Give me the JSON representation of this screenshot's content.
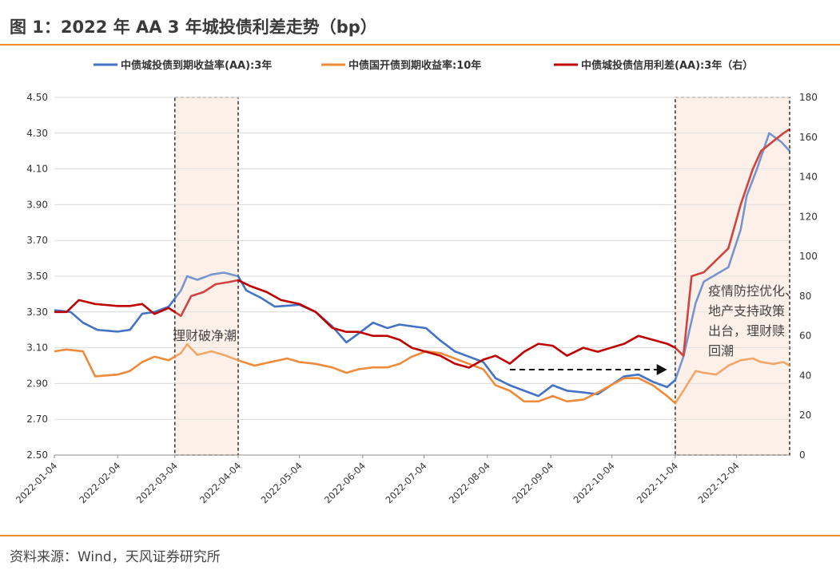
{
  "header": {
    "title": "图 1：2022 年 AA 3 年城投债利差走势（bp）"
  },
  "footer": {
    "source": "资料来源：Wind，天风证券研究所"
  },
  "chart_data": {
    "type": "line",
    "title": "",
    "legend_position": "top",
    "grid": "horizontal",
    "x_ticks": [
      "2022-01-04",
      "2022-02-04",
      "2022-03-04",
      "2022-04-04",
      "2022-05-04",
      "2022-06-04",
      "2022-07-04",
      "2022-08-04",
      "2022-09-04",
      "2022-10-04",
      "2022-11-04",
      "2022-12-04"
    ],
    "xlim": [
      "2022-01-04",
      "2022-12-30"
    ],
    "y_left": {
      "ticks": [
        "2.50",
        "2.70",
        "2.90",
        "3.10",
        "3.30",
        "3.50",
        "3.70",
        "3.90",
        "4.10",
        "4.30",
        "4.50"
      ],
      "lim": [
        2.5,
        4.5
      ]
    },
    "y_right": {
      "ticks": [
        "0",
        "20",
        "40",
        "60",
        "80",
        "100",
        "120",
        "140",
        "160",
        "180"
      ],
      "lim": [
        0,
        180
      ]
    },
    "series": [
      {
        "name": "中债城投债到期收益率(AA):3年",
        "axis": "left",
        "color": "#4472c4",
        "x": [
          "2022-01-04",
          "2022-01-12",
          "2022-01-18",
          "2022-01-25",
          "2022-02-04",
          "2022-02-10",
          "2022-02-16",
          "2022-02-22",
          "2022-03-01",
          "2022-03-07",
          "2022-03-10",
          "2022-03-15",
          "2022-03-22",
          "2022-03-28",
          "2022-04-04",
          "2022-04-08",
          "2022-04-15",
          "2022-04-22",
          "2022-05-04",
          "2022-05-12",
          "2022-05-20",
          "2022-05-27",
          "2022-06-02",
          "2022-06-09",
          "2022-06-16",
          "2022-06-22",
          "2022-06-28",
          "2022-07-05",
          "2022-07-12",
          "2022-07-19",
          "2022-07-26",
          "2022-08-02",
          "2022-08-08",
          "2022-08-15",
          "2022-08-22",
          "2022-08-29",
          "2022-09-05",
          "2022-09-12",
          "2022-09-20",
          "2022-09-27",
          "2022-10-10",
          "2022-10-17",
          "2022-10-24",
          "2022-10-31",
          "2022-11-04",
          "2022-11-08",
          "2022-11-14",
          "2022-11-18",
          "2022-11-24",
          "2022-11-30",
          "2022-12-06",
          "2022-12-09",
          "2022-12-14",
          "2022-12-20",
          "2022-12-26",
          "2022-12-30"
        ],
        "values": [
          3.31,
          3.3,
          3.24,
          3.2,
          3.19,
          3.2,
          3.29,
          3.3,
          3.33,
          3.42,
          3.5,
          3.48,
          3.51,
          3.52,
          3.5,
          3.42,
          3.38,
          3.33,
          3.34,
          3.3,
          3.22,
          3.13,
          3.18,
          3.24,
          3.21,
          3.23,
          3.22,
          3.21,
          3.14,
          3.08,
          3.05,
          3.02,
          2.93,
          2.89,
          2.86,
          2.83,
          2.89,
          2.86,
          2.85,
          2.84,
          2.94,
          2.95,
          2.91,
          2.88,
          2.92,
          3.05,
          3.35,
          3.47,
          3.51,
          3.55,
          3.76,
          3.95,
          4.1,
          4.3,
          4.25,
          4.2
        ]
      },
      {
        "name": "中债国开债到期收益率:10年",
        "axis": "left",
        "color": "#ed8b3a",
        "x": [
          "2022-01-04",
          "2022-01-10",
          "2022-01-18",
          "2022-01-24",
          "2022-02-04",
          "2022-02-10",
          "2022-02-16",
          "2022-02-22",
          "2022-03-01",
          "2022-03-07",
          "2022-03-10",
          "2022-03-15",
          "2022-03-22",
          "2022-03-28",
          "2022-04-04",
          "2022-04-12",
          "2022-04-20",
          "2022-04-28",
          "2022-05-04",
          "2022-05-12",
          "2022-05-20",
          "2022-05-27",
          "2022-06-02",
          "2022-06-09",
          "2022-06-16",
          "2022-06-22",
          "2022-06-28",
          "2022-07-05",
          "2022-07-12",
          "2022-07-19",
          "2022-07-26",
          "2022-08-02",
          "2022-08-08",
          "2022-08-15",
          "2022-08-22",
          "2022-08-29",
          "2022-09-05",
          "2022-09-12",
          "2022-09-20",
          "2022-09-27",
          "2022-10-10",
          "2022-10-17",
          "2022-10-24",
          "2022-10-31",
          "2022-11-04",
          "2022-11-08",
          "2022-11-14",
          "2022-11-18",
          "2022-11-24",
          "2022-11-30",
          "2022-12-06",
          "2022-12-12",
          "2022-12-16",
          "2022-12-22",
          "2022-12-27",
          "2022-12-30"
        ],
        "values": [
          3.08,
          3.09,
          3.08,
          2.94,
          2.95,
          2.97,
          3.02,
          3.05,
          3.03,
          3.07,
          3.12,
          3.06,
          3.08,
          3.06,
          3.03,
          3.0,
          3.02,
          3.04,
          3.02,
          3.01,
          2.99,
          2.96,
          2.98,
          2.99,
          2.99,
          3.01,
          3.05,
          3.08,
          3.07,
          3.04,
          3.01,
          2.98,
          2.89,
          2.86,
          2.8,
          2.8,
          2.83,
          2.8,
          2.81,
          2.85,
          2.93,
          2.93,
          2.89,
          2.83,
          2.79,
          2.86,
          2.97,
          2.96,
          2.95,
          3.0,
          3.03,
          3.04,
          3.02,
          3.01,
          3.02,
          3.0
        ]
      },
      {
        "name": "中债城投债信用利差(AA):3年（右）",
        "axis": "right",
        "color": "#c00000",
        "x": [
          "2022-01-04",
          "2022-01-10",
          "2022-01-16",
          "2022-01-24",
          "2022-02-04",
          "2022-02-10",
          "2022-02-16",
          "2022-02-22",
          "2022-03-01",
          "2022-03-07",
          "2022-03-12",
          "2022-03-18",
          "2022-03-24",
          "2022-03-30",
          "2022-04-04",
          "2022-04-10",
          "2022-04-18",
          "2022-04-25",
          "2022-05-04",
          "2022-05-12",
          "2022-05-20",
          "2022-05-27",
          "2022-06-02",
          "2022-06-09",
          "2022-06-16",
          "2022-06-22",
          "2022-06-28",
          "2022-07-05",
          "2022-07-12",
          "2022-07-19",
          "2022-07-26",
          "2022-08-02",
          "2022-08-08",
          "2022-08-15",
          "2022-08-22",
          "2022-08-29",
          "2022-09-05",
          "2022-09-12",
          "2022-09-20",
          "2022-09-27",
          "2022-10-10",
          "2022-10-17",
          "2022-10-24",
          "2022-10-31",
          "2022-11-04",
          "2022-11-08",
          "2022-11-12",
          "2022-11-18",
          "2022-11-24",
          "2022-11-30",
          "2022-12-06",
          "2022-12-12",
          "2022-12-16",
          "2022-12-22",
          "2022-12-27",
          "2022-12-30"
        ],
        "values": [
          72,
          72,
          78,
          76,
          75,
          75,
          76,
          71,
          74,
          70,
          80,
          82,
          86,
          87,
          88,
          85,
          82,
          78,
          76,
          72,
          64,
          62,
          62,
          60,
          60,
          58,
          54,
          52,
          50,
          46,
          44,
          48,
          50,
          46,
          52,
          56,
          55,
          50,
          54,
          52,
          56,
          60,
          58,
          56,
          54,
          50,
          90,
          92,
          98,
          104,
          126,
          144,
          153,
          158,
          162,
          164
        ]
      }
    ],
    "annotations": [
      {
        "text": "理财破净潮"
      },
      {
        "text": "疫情防控优化、地产支持政策出台，理财赎回潮"
      }
    ]
  }
}
